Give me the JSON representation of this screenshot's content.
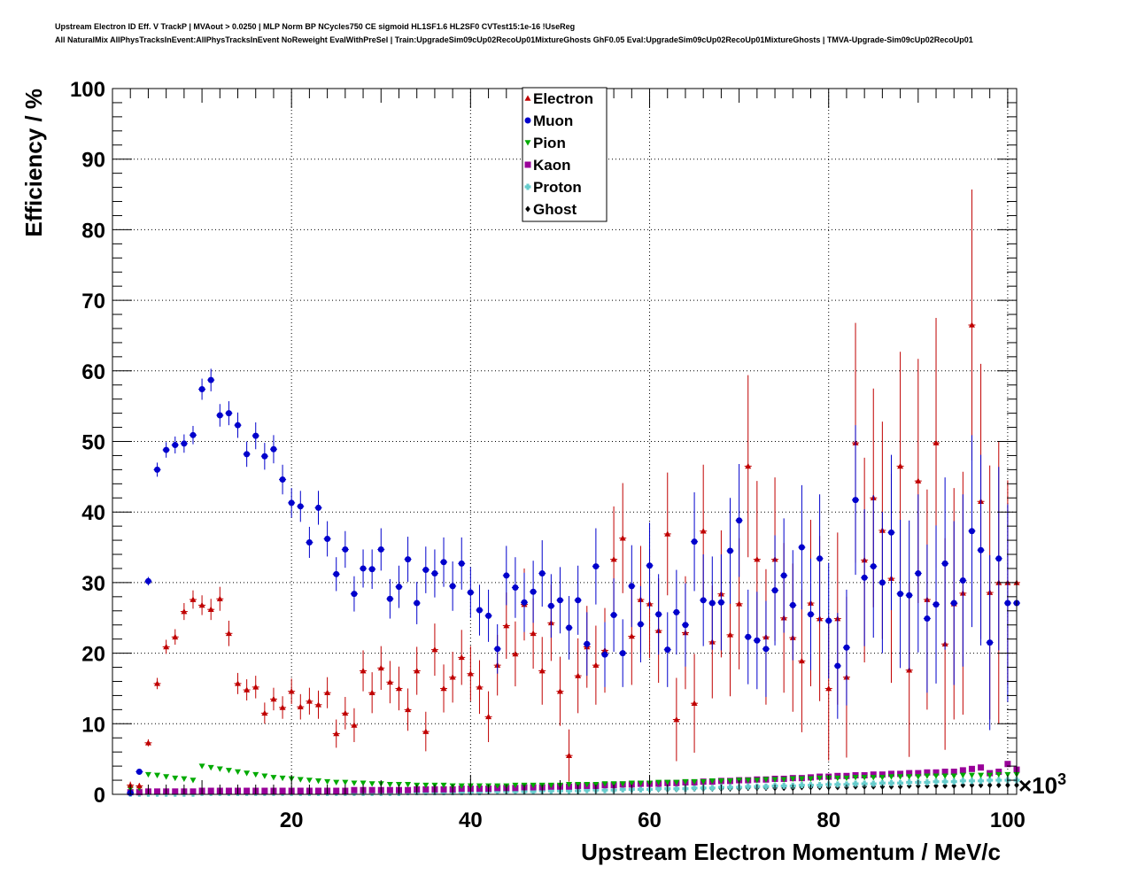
{
  "header": {
    "title_line1": "Upstream Electron ID Eff. V TrackP | MVAout > 0.0250 | MLP Norm BP NCycles750 CE sigmoid HL1SF1.6 HL2SF0 CVTest15:1e-16 !UseReg",
    "title_line2": "All NaturalMix AllPhysTracksInEvent:AllPhysTracksInEvent NoReweight EvalWithPreSel | Train:UpgradeSim09cUp02RecoUp01MixtureGhosts GhF0.05 Eval:UpgradeSim09cUp02RecoUp01MixtureGhosts | TMVA-Upgrade-Sim09cUp02RecoUp01"
  },
  "chart_data": {
    "type": "scatter",
    "xlabel": "Upstream Electron Momentum / MeV/c",
    "ylabel": "Efficiency / %",
    "x_multiplier_label": "×10",
    "x_multiplier_exp": "3",
    "xlim": [
      0,
      101
    ],
    "ylim": [
      0,
      100
    ],
    "x_ticks": [
      20,
      40,
      60,
      80,
      100
    ],
    "y_ticks": [
      0,
      10,
      20,
      30,
      40,
      50,
      60,
      70,
      80,
      90,
      100
    ],
    "grid": true,
    "legend_position": "top-center",
    "x": [
      2,
      3,
      4,
      5,
      6,
      7,
      8,
      9,
      10,
      11,
      12,
      13,
      14,
      15,
      16,
      17,
      18,
      19,
      20,
      21,
      22,
      23,
      24,
      25,
      26,
      27,
      28,
      29,
      30,
      31,
      32,
      33,
      34,
      35,
      36,
      37,
      38,
      39,
      40,
      41,
      42,
      43,
      44,
      45,
      46,
      47,
      48,
      49,
      50,
      51,
      52,
      53,
      54,
      55,
      56,
      57,
      58,
      59,
      60,
      61,
      62,
      63,
      64,
      65,
      66,
      67,
      68,
      69,
      70,
      71,
      72,
      73,
      74,
      75,
      76,
      77,
      78,
      79,
      80,
      81,
      82,
      83,
      84,
      85,
      86,
      87,
      88,
      89,
      90,
      91,
      92,
      93,
      94,
      95,
      96,
      97,
      98,
      99,
      100,
      101
    ],
    "series": [
      {
        "name": "Electron",
        "color": "#c00000",
        "marker": "triangle-up",
        "values": [
          1.3,
          1.2,
          7.3,
          15.7,
          20.9,
          22.3,
          25.9,
          27.6,
          26.8,
          26.2,
          27.7,
          22.8,
          15.7,
          14.8,
          15.2,
          11.5,
          13.5,
          12.3,
          14.6,
          12.4,
          13.2,
          12.7,
          14.4,
          8.6,
          11.5,
          9.8,
          17.5,
          14.4,
          17.9,
          15.9,
          15.0,
          12.0,
          17.5,
          8.9,
          20.5,
          15.0,
          16.6,
          19.4,
          17.1,
          15.2,
          11.0,
          18.3,
          23.9,
          19.9,
          26.9,
          22.8,
          17.5,
          24.3,
          14.6,
          5.5,
          16.8,
          20.9,
          18.3,
          20.4,
          33.3,
          36.3,
          22.4,
          27.6,
          27.0,
          23.2,
          36.9,
          10.6,
          22.9,
          12.9,
          37.3,
          21.6,
          28.4,
          22.6,
          27.0,
          46.5,
          33.3,
          22.3,
          33.3,
          25.0,
          22.2,
          18.9,
          27.1,
          24.9,
          15.0,
          24.9,
          16.6,
          49.8,
          33.2,
          42.0,
          37.4,
          30.6,
          46.5,
          17.6,
          44.4,
          27.6,
          49.8,
          21.3,
          27.0,
          28.5,
          66.5,
          41.5,
          28.6,
          30.0,
          30.0,
          30.0
        ],
        "errors": [
          0.5,
          0.4,
          0.5,
          0.8,
          1.0,
          1.1,
          1.2,
          1.3,
          1.4,
          1.5,
          1.7,
          1.8,
          1.5,
          1.5,
          1.6,
          1.5,
          1.6,
          1.6,
          1.8,
          1.8,
          1.9,
          2.0,
          2.2,
          2.0,
          2.3,
          2.4,
          2.9,
          2.9,
          3.1,
          3.0,
          3.1,
          3.0,
          3.4,
          2.8,
          3.7,
          3.4,
          3.6,
          3.9,
          3.9,
          3.8,
          3.6,
          4.3,
          4.7,
          4.6,
          5.1,
          5.0,
          4.8,
          5.4,
          4.9,
          3.7,
          5.3,
          5.8,
          5.6,
          6.0,
          7.5,
          7.8,
          6.9,
          7.6,
          7.7,
          7.4,
          8.7,
          5.9,
          8.0,
          7.0,
          9.4,
          8.0,
          9.0,
          8.7,
          9.3,
          12.9,
          11.1,
          9.6,
          11.6,
          10.6,
          10.5,
          10.1,
          11.8,
          11.7,
          10.2,
          12.2,
          11.4,
          17.0,
          14.5,
          15.5,
          15.4,
          14.8,
          16.2,
          12.3,
          17.3,
          15.6,
          17.7,
          15.0,
          16.4,
          17.2,
          19.2,
          19.5,
          18.0,
          20.0,
          14.5,
          14.5
        ]
      },
      {
        "name": "Muon",
        "color": "#0000cc",
        "marker": "circle",
        "values": [
          0.2,
          3.2,
          30.2,
          46.0,
          48.8,
          49.5,
          49.7,
          50.9,
          57.4,
          58.7,
          53.7,
          54.0,
          52.3,
          48.2,
          50.8,
          47.9,
          48.9,
          44.6,
          41.3,
          40.8,
          35.7,
          40.6,
          36.2,
          31.2,
          34.7,
          28.4,
          32.0,
          31.9,
          34.7,
          27.7,
          29.4,
          33.3,
          27.1,
          31.8,
          31.3,
          32.9,
          29.5,
          32.7,
          28.6,
          26.1,
          25.3,
          20.6,
          31.0,
          29.3,
          27.2,
          28.7,
          31.3,
          26.7,
          27.5,
          23.6,
          27.5,
          21.3,
          32.3,
          19.8,
          25.4,
          20.0,
          29.5,
          24.1,
          32.4,
          25.5,
          20.5,
          25.8,
          24.0,
          35.8,
          27.5,
          27.1,
          27.2,
          34.5,
          38.8,
          22.3,
          21.8,
          20.6,
          28.9,
          31.0,
          26.8,
          35.0,
          25.5,
          33.4,
          24.6,
          18.2,
          20.8,
          41.7,
          30.7,
          32.3,
          30.0,
          37.1,
          28.4,
          28.2,
          31.3,
          24.9,
          26.9,
          32.7,
          27.1,
          30.3,
          37.3,
          34.6,
          21.5,
          33.4,
          27.1,
          27.1
        ],
        "errors": [
          0.1,
          0.3,
          0.6,
          1.0,
          1.1,
          1.2,
          1.3,
          1.3,
          1.5,
          1.6,
          1.6,
          1.7,
          1.8,
          1.8,
          1.9,
          1.9,
          2.0,
          2.1,
          2.1,
          2.2,
          2.2,
          2.4,
          2.5,
          2.4,
          2.6,
          2.5,
          2.7,
          2.8,
          3.0,
          2.8,
          3.0,
          3.2,
          3.0,
          3.3,
          3.4,
          3.5,
          3.5,
          3.7,
          3.6,
          3.6,
          3.7,
          3.5,
          4.2,
          4.3,
          4.2,
          4.4,
          4.7,
          4.5,
          4.7,
          4.5,
          4.9,
          4.5,
          5.4,
          4.6,
          5.2,
          4.8,
          5.8,
          5.4,
          6.1,
          5.7,
          5.3,
          6.0,
          5.9,
          7.0,
          6.5,
          6.6,
          6.8,
          7.5,
          8.0,
          6.7,
          6.9,
          6.8,
          7.8,
          8.1,
          7.8,
          8.8,
          7.9,
          9.1,
          8.2,
          7.5,
          8.2,
          10.6,
          9.7,
          10.1,
          10.0,
          11.0,
          10.5,
          10.6,
          11.2,
          10.5,
          11.2,
          12.2,
          11.6,
          12.2,
          13.6,
          13.5,
          12.4,
          13.0,
          14.0,
          14.0
        ]
      },
      {
        "name": "Pion",
        "color": "#00aa00",
        "marker": "triangle-down",
        "values": [
          0.8,
          0.9,
          2.8,
          2.7,
          2.5,
          2.3,
          2.2,
          2.0,
          4.0,
          3.8,
          3.6,
          3.4,
          3.2,
          3.0,
          2.8,
          2.6,
          2.4,
          2.3,
          2.2,
          2.1,
          2.0,
          1.9,
          1.8,
          1.7,
          1.7,
          1.6,
          1.6,
          1.5,
          1.5,
          1.4,
          1.4,
          1.4,
          1.3,
          1.3,
          1.3,
          1.3,
          1.2,
          1.2,
          1.2,
          1.2,
          1.2,
          1.2,
          1.2,
          1.3,
          1.3,
          1.3,
          1.3,
          1.3,
          1.3,
          1.4,
          1.4,
          1.4,
          1.4,
          1.5,
          1.5,
          1.5,
          1.6,
          1.6,
          1.6,
          1.7,
          1.7,
          1.7,
          1.8,
          1.8,
          1.8,
          1.9,
          1.9,
          1.9,
          2.0,
          2.0,
          2.0,
          2.1,
          2.1,
          2.1,
          2.2,
          2.2,
          2.2,
          2.3,
          2.3,
          2.3,
          2.3,
          2.4,
          2.4,
          2.4,
          2.4,
          2.5,
          2.5,
          2.5,
          2.5,
          2.6,
          2.6,
          2.6,
          2.6,
          2.7,
          2.7,
          2.7,
          2.7,
          2.8,
          2.8,
          2.8
        ]
      },
      {
        "name": "Kaon",
        "color": "#990099",
        "marker": "square",
        "values": [
          0.3,
          0.3,
          0.4,
          0.4,
          0.4,
          0.4,
          0.4,
          0.4,
          0.5,
          0.5,
          0.5,
          0.5,
          0.5,
          0.5,
          0.5,
          0.5,
          0.5,
          0.5,
          0.5,
          0.5,
          0.5,
          0.5,
          0.5,
          0.5,
          0.5,
          0.6,
          0.6,
          0.6,
          0.6,
          0.6,
          0.6,
          0.6,
          0.7,
          0.7,
          0.7,
          0.7,
          0.7,
          0.8,
          0.8,
          0.8,
          0.8,
          0.9,
          0.9,
          0.9,
          1.0,
          1.0,
          1.0,
          1.1,
          1.1,
          1.1,
          1.2,
          1.2,
          1.2,
          1.3,
          1.3,
          1.4,
          1.4,
          1.5,
          1.5,
          1.5,
          1.6,
          1.6,
          1.7,
          1.7,
          1.8,
          1.8,
          1.9,
          1.9,
          2.0,
          2.0,
          2.1,
          2.1,
          2.2,
          2.2,
          2.3,
          2.3,
          2.4,
          2.5,
          2.5,
          2.6,
          2.6,
          2.7,
          2.7,
          2.8,
          2.8,
          2.9,
          2.9,
          3.0,
          3.0,
          3.1,
          3.1,
          3.2,
          3.2,
          3.4,
          3.6,
          3.8,
          3.0,
          3.2,
          4.3,
          3.5
        ]
      },
      {
        "name": "Proton",
        "color": "#66cccc",
        "marker": "cross",
        "values": [
          0.1,
          0.1,
          0.1,
          0.1,
          0.1,
          0.1,
          0.1,
          0.1,
          0.2,
          0.2,
          0.2,
          0.2,
          0.2,
          0.2,
          0.2,
          0.2,
          0.2,
          0.2,
          0.2,
          0.2,
          0.2,
          0.2,
          0.2,
          0.2,
          0.2,
          0.2,
          0.2,
          0.2,
          0.2,
          0.2,
          0.2,
          0.3,
          0.3,
          0.3,
          0.3,
          0.3,
          0.3,
          0.3,
          0.3,
          0.3,
          0.4,
          0.4,
          0.4,
          0.4,
          0.4,
          0.4,
          0.5,
          0.5,
          0.5,
          0.5,
          0.5,
          0.6,
          0.6,
          0.6,
          0.6,
          0.7,
          0.7,
          0.7,
          0.7,
          0.8,
          0.8,
          0.8,
          0.8,
          0.9,
          0.9,
          0.9,
          1.0,
          1.0,
          1.0,
          1.1,
          1.1,
          1.1,
          1.2,
          1.2,
          1.2,
          1.3,
          1.3,
          1.3,
          1.4,
          1.4,
          1.4,
          1.5,
          1.5,
          1.5,
          1.6,
          1.6,
          1.6,
          1.7,
          1.7,
          1.7,
          1.8,
          1.8,
          1.8,
          1.9,
          1.9,
          1.9,
          2.0,
          2.0,
          2.0,
          2.0
        ]
      },
      {
        "name": "Ghost",
        "color": "#000000",
        "marker": "diamond",
        "values": [
          0.1,
          0.2,
          0.2,
          0.3,
          0.3,
          0.3,
          0.3,
          0.3,
          0.4,
          0.4,
          0.4,
          0.4,
          0.4,
          0.4,
          0.4,
          0.4,
          0.4,
          0.4,
          0.4,
          0.4,
          0.4,
          0.4,
          0.4,
          0.4,
          0.4,
          0.4,
          0.4,
          0.4,
          0.4,
          0.4,
          0.5,
          0.5,
          0.5,
          0.5,
          0.5,
          0.5,
          0.5,
          0.5,
          0.5,
          0.5,
          0.5,
          0.5,
          0.5,
          0.5,
          0.5,
          0.5,
          0.6,
          0.6,
          0.6,
          0.6,
          0.6,
          0.6,
          0.6,
          0.6,
          0.6,
          0.7,
          0.7,
          0.7,
          0.7,
          0.7,
          0.7,
          0.7,
          0.8,
          0.8,
          0.8,
          0.8,
          0.8,
          0.8,
          0.8,
          0.9,
          0.9,
          0.9,
          0.9,
          0.9,
          0.9,
          1.0,
          1.0,
          1.0,
          1.0,
          1.0,
          1.0,
          1.1,
          1.1,
          1.1,
          1.1,
          1.1,
          1.1,
          1.2,
          1.2,
          1.2,
          1.2,
          1.2,
          1.2,
          1.3,
          1.3,
          1.3,
          1.3,
          1.3,
          1.3,
          1.3
        ]
      }
    ]
  }
}
